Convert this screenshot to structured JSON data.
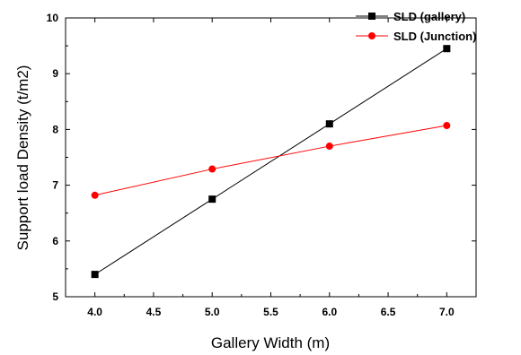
{
  "chart_data": {
    "type": "line",
    "title": "",
    "xlabel": "Gallery Width (m)",
    "ylabel": "Support load Density (t/m2)",
    "xlim": [
      3.75,
      7.25
    ],
    "ylim": [
      5,
      10
    ],
    "x_ticks": [
      4.0,
      4.5,
      5.0,
      5.5,
      6.0,
      6.5,
      7.0
    ],
    "x_tick_labels": [
      "4.0",
      "4.5",
      "5.0",
      "5.5",
      "6.0",
      "6.5",
      "7.0"
    ],
    "y_ticks": [
      5,
      6,
      7,
      8,
      9,
      10
    ],
    "y_tick_labels": [
      "5",
      "6",
      "7",
      "8",
      "9",
      "10"
    ],
    "grid": false,
    "legend_position": "top-right",
    "series": [
      {
        "name": "SLD (gallery)",
        "color": "#000000",
        "marker": "square",
        "x": [
          4.0,
          5.0,
          6.0,
          7.0
        ],
        "y": [
          5.4,
          6.75,
          8.1,
          9.45
        ]
      },
      {
        "name": "SLD (Junction)",
        "color": "#ff0000",
        "marker": "circle",
        "x": [
          4.0,
          5.0,
          6.0,
          7.0
        ],
        "y": [
          6.82,
          7.29,
          7.7,
          8.07
        ]
      }
    ]
  }
}
